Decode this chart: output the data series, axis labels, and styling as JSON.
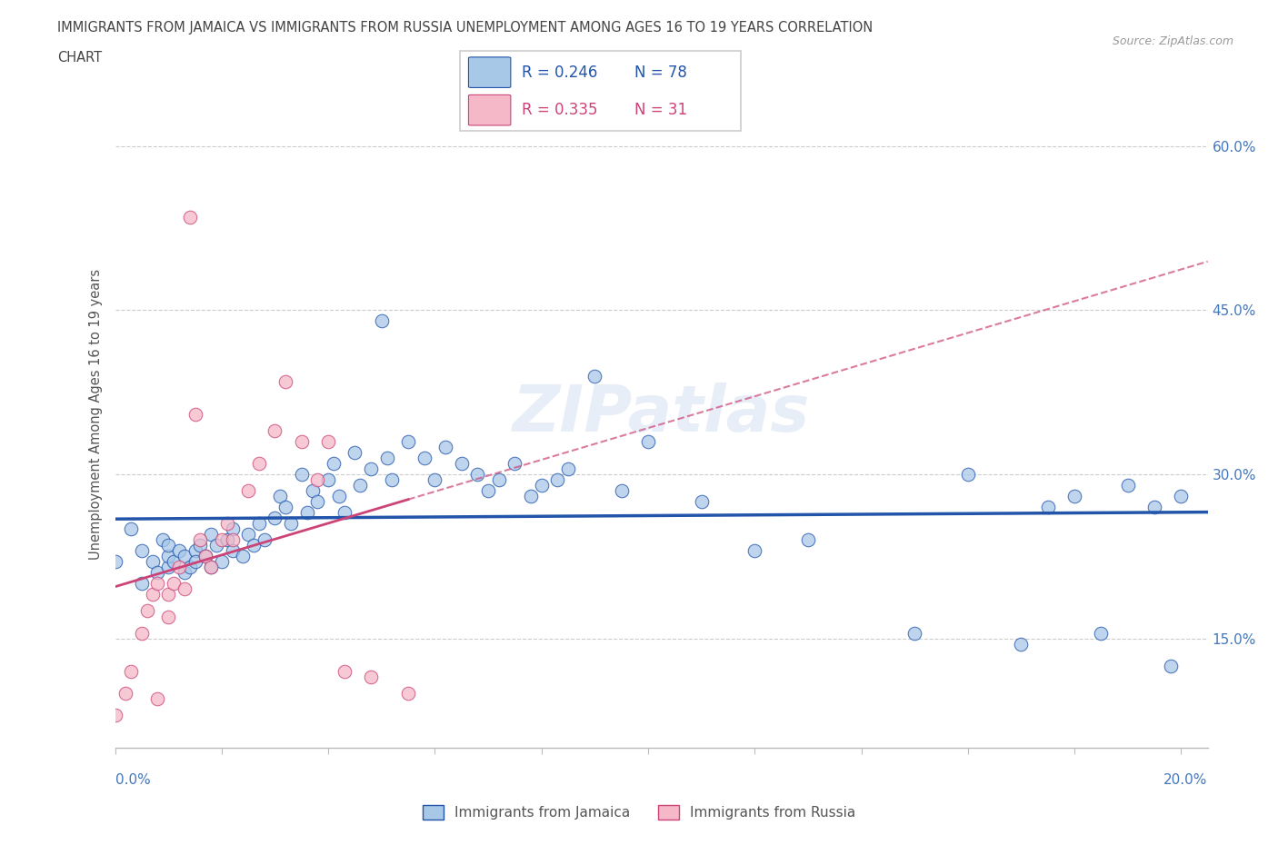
{
  "title_line1": "IMMIGRANTS FROM JAMAICA VS IMMIGRANTS FROM RUSSIA UNEMPLOYMENT AMONG AGES 16 TO 19 YEARS CORRELATION",
  "title_line2": "CHART",
  "source_text": "Source: ZipAtlas.com",
  "ylabel": "Unemployment Among Ages 16 to 19 years",
  "xlim": [
    0.0,
    0.205
  ],
  "ylim": [
    0.05,
    0.66
  ],
  "yticks": [
    0.15,
    0.3,
    0.45,
    0.6
  ],
  "ytick_labels": [
    "15.0%",
    "30.0%",
    "45.0%",
    "60.0%"
  ],
  "legend_r1": "R = 0.246",
  "legend_n1": "N = 78",
  "legend_r2": "R = 0.335",
  "legend_n2": "N = 31",
  "color_jamaica": "#a8c8e8",
  "color_russia": "#f4b8c8",
  "color_trend_jamaica": "#2255aa",
  "color_trend_russia": "#cc4477",
  "watermark": "ZIPatlas",
  "jamaica_x": [
    0.0,
    0.003,
    0.005,
    0.005,
    0.007,
    0.008,
    0.009,
    0.01,
    0.01,
    0.01,
    0.011,
    0.012,
    0.013,
    0.013,
    0.014,
    0.015,
    0.015,
    0.016,
    0.017,
    0.018,
    0.018,
    0.019,
    0.02,
    0.021,
    0.022,
    0.022,
    0.024,
    0.025,
    0.026,
    0.027,
    0.028,
    0.03,
    0.031,
    0.032,
    0.033,
    0.035,
    0.036,
    0.037,
    0.038,
    0.04,
    0.041,
    0.042,
    0.043,
    0.045,
    0.046,
    0.048,
    0.05,
    0.051,
    0.052,
    0.055,
    0.058,
    0.06,
    0.062,
    0.065,
    0.068,
    0.07,
    0.072,
    0.075,
    0.078,
    0.08,
    0.083,
    0.085,
    0.09,
    0.095,
    0.1,
    0.11,
    0.12,
    0.13,
    0.15,
    0.16,
    0.17,
    0.175,
    0.18,
    0.185,
    0.19,
    0.195,
    0.198,
    0.2
  ],
  "jamaica_y": [
    0.22,
    0.25,
    0.2,
    0.23,
    0.22,
    0.21,
    0.24,
    0.215,
    0.225,
    0.235,
    0.22,
    0.23,
    0.21,
    0.225,
    0.215,
    0.23,
    0.22,
    0.235,
    0.225,
    0.215,
    0.245,
    0.235,
    0.22,
    0.24,
    0.23,
    0.25,
    0.225,
    0.245,
    0.235,
    0.255,
    0.24,
    0.26,
    0.28,
    0.27,
    0.255,
    0.3,
    0.265,
    0.285,
    0.275,
    0.295,
    0.31,
    0.28,
    0.265,
    0.32,
    0.29,
    0.305,
    0.44,
    0.315,
    0.295,
    0.33,
    0.315,
    0.295,
    0.325,
    0.31,
    0.3,
    0.285,
    0.295,
    0.31,
    0.28,
    0.29,
    0.295,
    0.305,
    0.39,
    0.285,
    0.33,
    0.275,
    0.23,
    0.24,
    0.155,
    0.3,
    0.145,
    0.27,
    0.28,
    0.155,
    0.29,
    0.27,
    0.125,
    0.28
  ],
  "russia_x": [
    0.0,
    0.002,
    0.003,
    0.005,
    0.006,
    0.007,
    0.008,
    0.008,
    0.01,
    0.01,
    0.011,
    0.012,
    0.013,
    0.014,
    0.015,
    0.016,
    0.017,
    0.018,
    0.02,
    0.021,
    0.022,
    0.025,
    0.027,
    0.03,
    0.032,
    0.035,
    0.038,
    0.04,
    0.043,
    0.048,
    0.055
  ],
  "russia_y": [
    0.08,
    0.1,
    0.12,
    0.155,
    0.175,
    0.19,
    0.2,
    0.095,
    0.19,
    0.17,
    0.2,
    0.215,
    0.195,
    0.535,
    0.355,
    0.24,
    0.225,
    0.215,
    0.24,
    0.255,
    0.24,
    0.285,
    0.31,
    0.34,
    0.385,
    0.33,
    0.295,
    0.33,
    0.12,
    0.115,
    0.1
  ]
}
